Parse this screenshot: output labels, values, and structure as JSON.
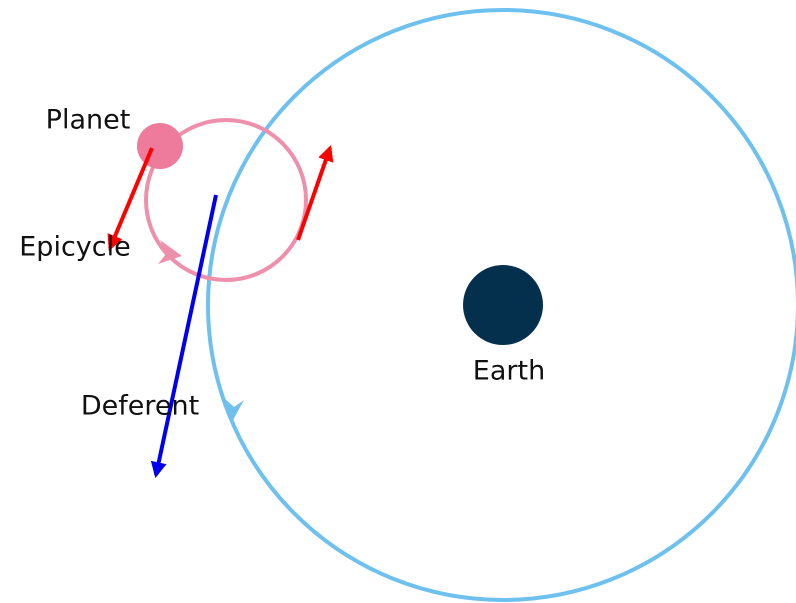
{
  "labels": {
    "planet": "Planet",
    "epicycle": "Epicycle",
    "deferent": "Deferent",
    "earth": "Earth"
  }
}
